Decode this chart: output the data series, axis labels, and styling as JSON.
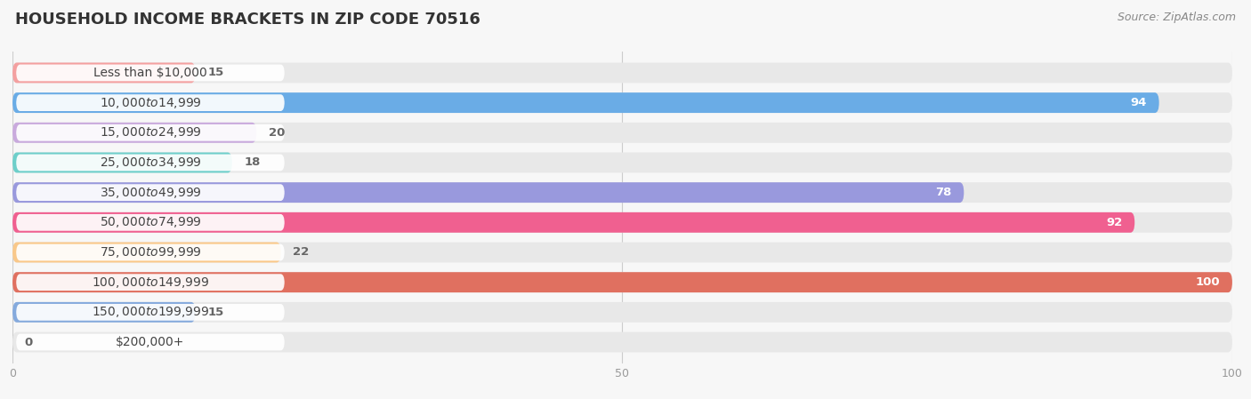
{
  "title": "HOUSEHOLD INCOME BRACKETS IN ZIP CODE 70516",
  "source": "Source: ZipAtlas.com",
  "categories": [
    "Less than $10,000",
    "$10,000 to $14,999",
    "$15,000 to $24,999",
    "$25,000 to $34,999",
    "$35,000 to $49,999",
    "$50,000 to $74,999",
    "$75,000 to $99,999",
    "$100,000 to $149,999",
    "$150,000 to $199,999",
    "$200,000+"
  ],
  "values": [
    15,
    94,
    20,
    18,
    78,
    92,
    22,
    100,
    15,
    0
  ],
  "bar_colors": [
    "#F4A0A0",
    "#6AACE6",
    "#C9AADD",
    "#6ECFCA",
    "#9999DD",
    "#F06090",
    "#F9C88A",
    "#E07060",
    "#85AADD",
    "#D8B8D8"
  ],
  "xlim": [
    0,
    100
  ],
  "background_color": "#f7f7f7",
  "bar_bg_color": "#e8e8e8",
  "title_fontsize": 13,
  "label_fontsize": 10,
  "value_fontsize": 9.5,
  "source_fontsize": 9
}
